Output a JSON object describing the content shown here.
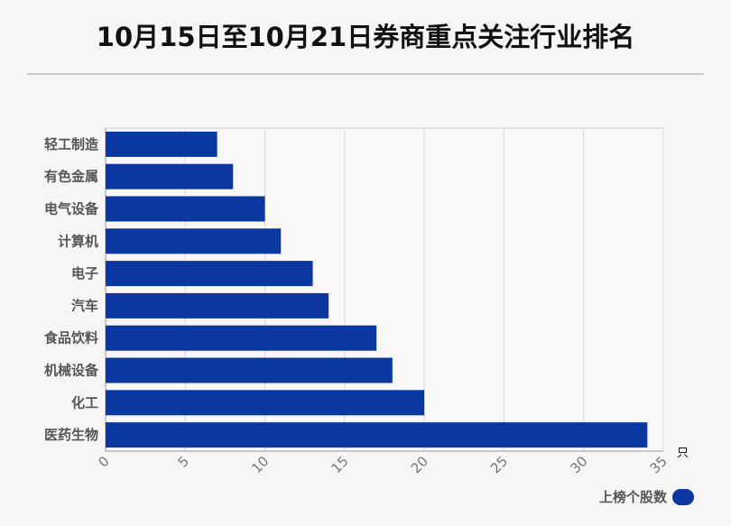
{
  "chart_data": {
    "type": "bar",
    "orientation": "horizontal",
    "title": "10月15日至10月21日券商重点关注行业排名",
    "categories": [
      "轻工制造",
      "有色金属",
      "电气设备",
      "计算机",
      "电子",
      "汽车",
      "食品饮料",
      "机械设备",
      "化工",
      "医药生物"
    ],
    "series": [
      {
        "name": "上榜个股数",
        "values": [
          7,
          8,
          10,
          11,
          13,
          14,
          17,
          18,
          20,
          34
        ]
      }
    ],
    "xlim": [
      0,
      35
    ],
    "xticks": [
      0,
      5,
      10,
      15,
      20,
      25,
      30,
      35
    ],
    "xunit": "只",
    "grid": true,
    "legend": "bottom-right",
    "bar_color": "#0b37a0"
  }
}
